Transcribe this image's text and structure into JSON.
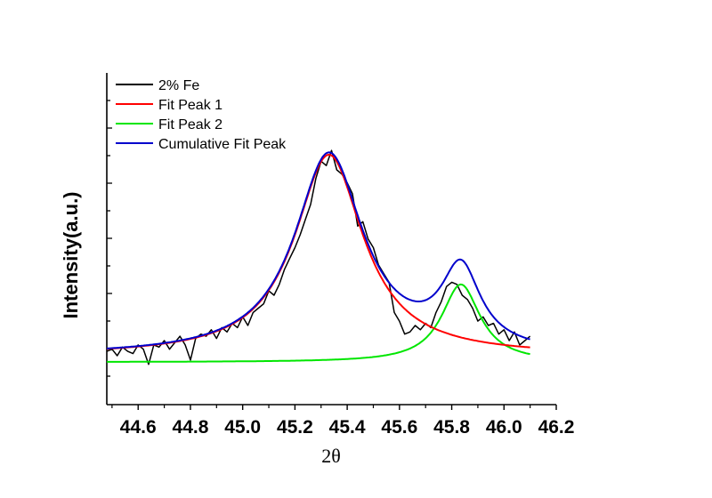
{
  "chart_data": {
    "type": "line",
    "title": "",
    "xlabel": "2θ",
    "ylabel": "Intensity(a.u.)",
    "xlim": [
      44.48,
      46.2
    ],
    "ylim": [
      0,
      1
    ],
    "x_ticks": [
      "44.6",
      "44.8",
      "45.0",
      "45.2",
      "45.4",
      "45.6",
      "45.8",
      "46.0",
      "46.2"
    ],
    "y_tick_labels_shown": false,
    "legend_position": "top-left",
    "series": [
      {
        "name": "2% Fe",
        "color": "#000000",
        "x": [
          44.48,
          44.5,
          44.52,
          44.54,
          44.56,
          44.58,
          44.6,
          44.62,
          44.64,
          44.66,
          44.68,
          44.7,
          44.72,
          44.74,
          44.76,
          44.78,
          44.8,
          44.82,
          44.84,
          44.86,
          44.88,
          44.9,
          44.92,
          44.94,
          44.96,
          44.98,
          45.0,
          45.02,
          45.04,
          45.06,
          45.08,
          45.1,
          45.12,
          45.14,
          45.16,
          45.18,
          45.2,
          45.22,
          45.24,
          45.26,
          45.28,
          45.3,
          45.32,
          45.34,
          45.36,
          45.38,
          45.4,
          45.42,
          45.44,
          45.46,
          45.48,
          45.5,
          45.52,
          45.54,
          45.56,
          45.58,
          45.6,
          45.62,
          45.64,
          45.66,
          45.68,
          45.7,
          45.72,
          45.74,
          45.76,
          45.78,
          45.8,
          45.82,
          45.84,
          45.86,
          45.88,
          45.9,
          45.92,
          45.94,
          45.96,
          45.98,
          46.0,
          46.02,
          46.04,
          46.06,
          46.08,
          46.1
        ],
        "y": [
          0.02,
          0.03,
          0.0,
          0.04,
          0.02,
          0.01,
          0.05,
          0.03,
          -0.04,
          0.05,
          0.04,
          0.07,
          0.03,
          0.06,
          0.09,
          0.05,
          -0.02,
          0.08,
          0.1,
          0.09,
          0.12,
          0.08,
          0.13,
          0.11,
          0.15,
          0.13,
          0.18,
          0.14,
          0.2,
          0.22,
          0.24,
          0.3,
          0.28,
          0.33,
          0.4,
          0.45,
          0.5,
          0.56,
          0.63,
          0.7,
          0.82,
          0.9,
          0.88,
          0.95,
          0.86,
          0.84,
          0.8,
          0.75,
          0.6,
          0.62,
          0.54,
          0.5,
          0.42,
          0.38,
          0.34,
          0.2,
          0.16,
          0.1,
          0.11,
          0.14,
          0.12,
          0.15,
          0.13,
          0.2,
          0.25,
          0.32,
          0.34,
          0.33,
          0.28,
          0.26,
          0.22,
          0.16,
          0.18,
          0.14,
          0.15,
          0.1,
          0.12,
          0.07,
          0.11,
          0.05,
          0.07,
          0.09
        ]
      },
      {
        "name": "Fit Peak 1",
        "color": "#ff0000",
        "x0": 45.33,
        "hwhm": 0.16,
        "amp": 0.93,
        "base": 0.0
      },
      {
        "name": "Fit Peak 2",
        "color": "#00e600",
        "x0": 45.835,
        "hwhm": 0.09,
        "amp": 0.36,
        "base": -0.03
      },
      {
        "name": "Cumulative Fit Peak",
        "color": "#0000cc",
        "components": [
          "Fit Peak 1",
          "Fit Peak 2"
        ]
      }
    ],
    "fit_range": [
      44.48,
      46.1
    ],
    "grid": false
  }
}
